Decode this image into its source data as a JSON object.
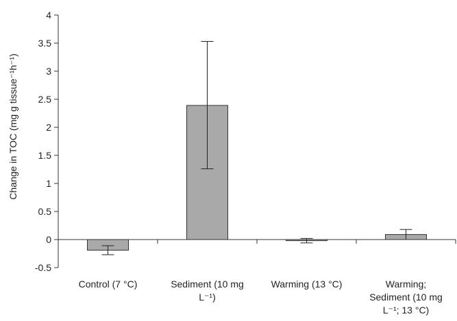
{
  "chart_data": {
    "type": "bar",
    "categories": [
      [
        "Control (7 °C)"
      ],
      [
        "Sediment (10 mg",
        "L⁻¹)"
      ],
      [
        "Warming (13 °C)"
      ],
      [
        "Warming;",
        "Sediment (10 mg",
        "L⁻¹; 13 °C)"
      ]
    ],
    "values": [
      -0.19,
      2.39,
      -0.02,
      0.09
    ],
    "error_low": [
      -0.27,
      1.26,
      -0.06,
      0.0
    ],
    "error_high": [
      -0.11,
      3.53,
      0.02,
      0.18
    ],
    "ylabel": "Change in TOC (mg g tissue⁻¹h⁻¹)",
    "ylim": [
      -0.5,
      4
    ],
    "yticks": [
      "4",
      "3.5",
      "3",
      "2.5",
      "2",
      "1.5",
      "1",
      "0.5",
      "0",
      "-0.5"
    ],
    "bar_color": "#a9a9a9",
    "bar_stroke": "#333333",
    "grid": false,
    "legend": "none"
  }
}
